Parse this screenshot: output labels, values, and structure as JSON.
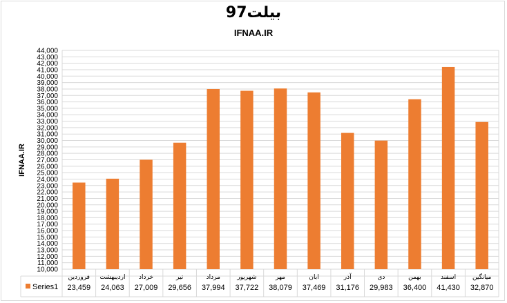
{
  "chart_data": {
    "type": "bar",
    "title": "بیلت97",
    "subtitle": "IFNAA.IR",
    "ylabel": "IFNAA.IR",
    "xlabel": "",
    "ylim": [
      10000,
      44000
    ],
    "ytick_step": 1000,
    "grid": true,
    "legend": "data-table",
    "bar_color": "#ED7D31",
    "grid_color": "#d9d9d9",
    "categories": [
      "فروردین",
      "اردیبهشت",
      "خرداد",
      "تیر",
      "مرداد",
      "شهریور",
      "مهر",
      "ابان",
      "آذر",
      "دی",
      "بهمن",
      "اسفند",
      "میانگین"
    ],
    "series": [
      {
        "name": "Series1",
        "values": [
          23459,
          24063,
          27009,
          29656,
          37994,
          37722,
          38079,
          37469,
          31176,
          29983,
          36400,
          41430,
          32870
        ],
        "labels": [
          "23,459",
          "24,063",
          "27,009",
          "29,656",
          "37,994",
          "37,722",
          "38,079",
          "37,469",
          "31,176",
          "29,983",
          "36,400",
          "41,430",
          "32,870"
        ]
      }
    ]
  }
}
